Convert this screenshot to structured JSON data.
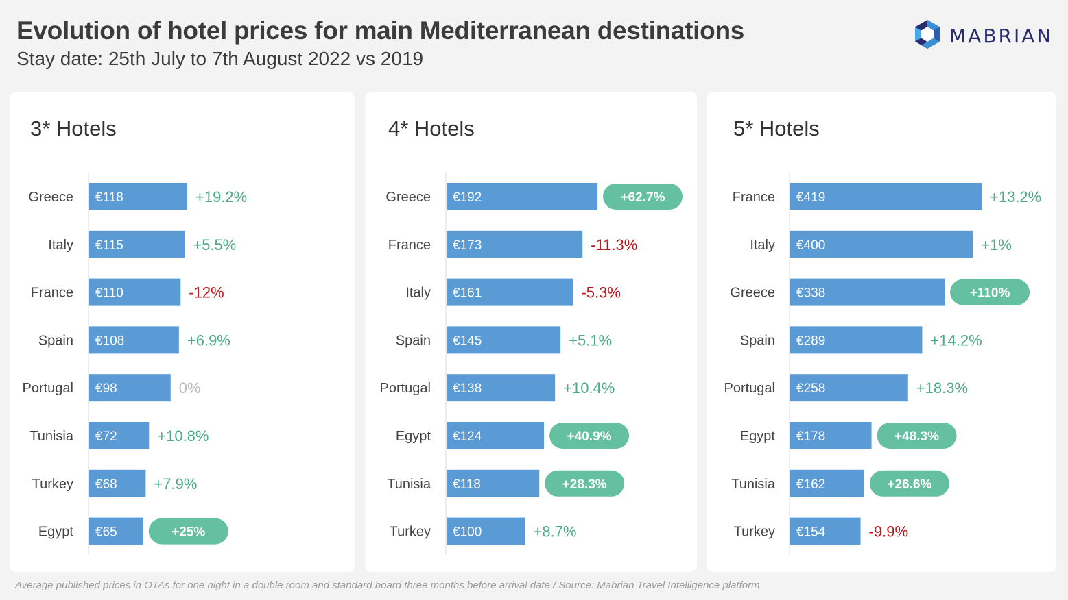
{
  "header": {
    "title": "Evolution of hotel prices for main Mediterranean destinations",
    "subtitle": "Stay date: 25th July to 7th August 2022 vs 2019",
    "logo_text": "MABRIAN",
    "logo_icon": "hexagon-logo-icon"
  },
  "footer": {
    "note": "Average published prices in OTAs for one night in a double room and standard board three months before arrival date /  Source: Mabrian Travel Intelligence platform"
  },
  "colors": {
    "bar": "#5b9bd5",
    "positive": "#4cab85",
    "negative": "#c0141c",
    "neutral": "#bbbbbb",
    "pill": "#64c0a0",
    "pill_text": "#ffffff",
    "bar_text": "#ffffff",
    "axis": "#d9d9d9"
  },
  "chart_data": [
    {
      "type": "bar",
      "orientation": "horizontal",
      "title": "3* Hotels",
      "xlabel": "",
      "ylabel": "",
      "currency": "€",
      "categories": [
        "Greece",
        "Italy",
        "France",
        "Spain",
        "Portugal",
        "Tunisia",
        "Turkey",
        "Egypt"
      ],
      "values": [
        118,
        115,
        110,
        108,
        98,
        72,
        68,
        65
      ],
      "value_labels": [
        "€118",
        "€115",
        "€110",
        "€108",
        "€98",
        "€72",
        "€68",
        "€65"
      ],
      "change_labels": [
        "+19.2%",
        "+5.5%",
        "-12%",
        "+6.9%",
        "0%",
        "+10.8%",
        "+7.9%",
        "+25%"
      ],
      "change_values": [
        19.2,
        5.5,
        -12,
        6.9,
        0,
        10.8,
        7.9,
        25
      ],
      "highlighted": [
        false,
        false,
        false,
        false,
        false,
        false,
        false,
        true
      ],
      "xlim": [
        0,
        118
      ]
    },
    {
      "type": "bar",
      "orientation": "horizontal",
      "title": "4* Hotels",
      "xlabel": "",
      "ylabel": "",
      "currency": "€",
      "categories": [
        "Greece",
        "France",
        "Italy",
        "Spain",
        "Portugal",
        "Egypt",
        "Tunisia",
        "Turkey"
      ],
      "values": [
        192,
        173,
        161,
        145,
        138,
        124,
        118,
        100
      ],
      "value_labels": [
        "€192",
        "€173",
        "€161",
        "€145",
        "€138",
        "€124",
        "€118",
        "€100"
      ],
      "change_labels": [
        "+62.7%",
        "-11.3%",
        "-5.3%",
        "+5.1%",
        "+10.4%",
        "+40.9%",
        "+28.3%",
        "+8.7%"
      ],
      "change_values": [
        62.7,
        -11.3,
        -5.3,
        5.1,
        10.4,
        40.9,
        28.3,
        8.7
      ],
      "highlighted": [
        true,
        false,
        false,
        false,
        false,
        true,
        true,
        false
      ],
      "xlim": [
        0,
        192
      ]
    },
    {
      "type": "bar",
      "orientation": "horizontal",
      "title": "5* Hotels",
      "xlabel": "",
      "ylabel": "",
      "currency": "€",
      "categories": [
        "France",
        "Italy",
        "Greece",
        "Spain",
        "Portugal",
        "Egypt",
        "Tunisia",
        "Turkey"
      ],
      "values": [
        419,
        400,
        338,
        289,
        258,
        178,
        162,
        154
      ],
      "value_labels": [
        "€419",
        "€400",
        "€338",
        "€289",
        "€258",
        "€178",
        "€162",
        "€154"
      ],
      "change_labels": [
        "+13.2%",
        "+1%",
        "+110%",
        "+14.2%",
        "+18.3%",
        "+48.3%",
        "+26.6%",
        "-9.9%"
      ],
      "change_values": [
        13.2,
        1,
        110,
        14.2,
        18.3,
        48.3,
        26.6,
        -9.9
      ],
      "highlighted": [
        false,
        false,
        true,
        false,
        false,
        true,
        true,
        false
      ],
      "xlim": [
        0,
        419
      ]
    }
  ]
}
